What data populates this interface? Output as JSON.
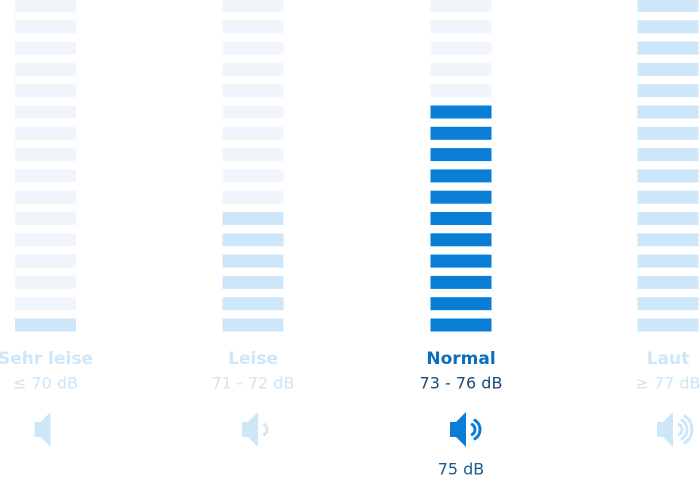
{
  "bars_per_column": 16,
  "columns": [
    {
      "title": "Sehr leise",
      "range": "≤ 70 dB",
      "level": 1,
      "waves": 0,
      "active": false
    },
    {
      "title": "Leise",
      "range": "71 - 72 dB",
      "level": 6,
      "waves": 1,
      "active": false
    },
    {
      "title": "Normal",
      "range": "73 - 76 dB",
      "level": 11,
      "waves": 2,
      "active": true,
      "reading": "75 dB"
    },
    {
      "title": "Laut",
      "range": "≥ 77 dB",
      "level": 16,
      "waves": 3,
      "active": false
    }
  ]
}
